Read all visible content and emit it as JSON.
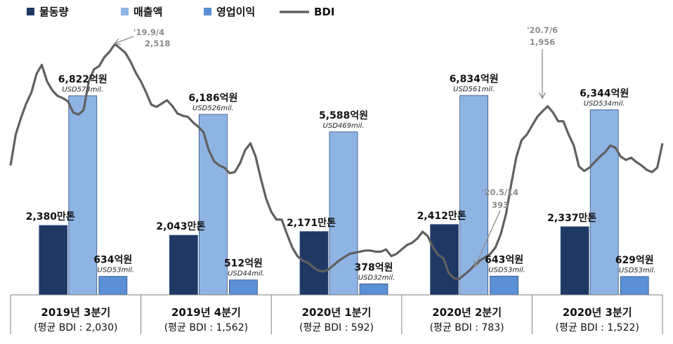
{
  "chart_data": {
    "type": "bar",
    "categories": [
      {
        "label": "2019년  3분기",
        "sublabel": "(평균 BDI : 2,030)"
      },
      {
        "label": "2019년  4분기",
        "sublabel": "(평균 BDI : 1,562)"
      },
      {
        "label": "2020년  1분기",
        "sublabel": "(평균 BDI : 592)"
      },
      {
        "label": "2020년  2분기",
        "sublabel": "(평균 BDI : 783)"
      },
      {
        "label": "2020년  3분기",
        "sublabel": "(평균 BDI : 1,522)"
      }
    ],
    "series": [
      {
        "name": "물동량",
        "unit": "만톤",
        "color": "#1f3864",
        "values": [
          2380,
          2043,
          2171,
          2412,
          2337
        ],
        "labels": [
          "2,380만톤",
          "2,043만톤",
          "2,171만톤",
          "2,412만톤",
          "2,337만톤"
        ],
        "sublabels": [
          "",
          "",
          "",
          "",
          ""
        ]
      },
      {
        "name": "매출액",
        "unit": "억원",
        "color": "#8eb4e3",
        "values": [
          6822,
          6186,
          5588,
          6834,
          6344
        ],
        "labels": [
          "6,822억원",
          "6,186억원",
          "5,588억원",
          "6,834억원",
          "6,344억원"
        ],
        "sublabels": [
          "USD573mil.",
          "USD526mil.",
          "USD469mil.",
          "USD561mil.",
          "USD534mil."
        ]
      },
      {
        "name": "영업이익",
        "unit": "억원",
        "color": "#5b8fd6",
        "values": [
          634,
          512,
          378,
          643,
          629
        ],
        "labels": [
          "634억원",
          "512억원",
          "378억원",
          "643억원",
          "629억원"
        ],
        "sublabels": [
          "USD53mil.",
          "USD44mil.",
          "USD32mil.",
          "USD53mil.",
          "USD53mil."
        ]
      }
    ],
    "line": {
      "name": "BDI",
      "color": "#606060",
      "ylim": [
        300,
        2650
      ],
      "x_range": [
        0,
        5
      ],
      "points": [
        [
          0.0,
          1420
        ],
        [
          0.04,
          1700
        ],
        [
          0.08,
          1850
        ],
        [
          0.12,
          1980
        ],
        [
          0.16,
          2080
        ],
        [
          0.2,
          2250
        ],
        [
          0.24,
          2330
        ],
        [
          0.28,
          2180
        ],
        [
          0.32,
          2100
        ],
        [
          0.36,
          2050
        ],
        [
          0.4,
          2030
        ],
        [
          0.44,
          2000
        ],
        [
          0.48,
          1900
        ],
        [
          0.52,
          1880
        ],
        [
          0.56,
          1920
        ],
        [
          0.6,
          2180
        ],
        [
          0.64,
          2290
        ],
        [
          0.68,
          2320
        ],
        [
          0.72,
          2400
        ],
        [
          0.76,
          2450
        ],
        [
          0.8,
          2518
        ],
        [
          0.84,
          2480
        ],
        [
          0.88,
          2440
        ],
        [
          0.92,
          2360
        ],
        [
          0.96,
          2260
        ],
        [
          1.0,
          2180
        ],
        [
          1.04,
          2080
        ],
        [
          1.08,
          1970
        ],
        [
          1.12,
          1950
        ],
        [
          1.16,
          1980
        ],
        [
          1.2,
          2010
        ],
        [
          1.24,
          1960
        ],
        [
          1.28,
          1890
        ],
        [
          1.32,
          1870
        ],
        [
          1.36,
          1860
        ],
        [
          1.4,
          1810
        ],
        [
          1.44,
          1770
        ],
        [
          1.48,
          1720
        ],
        [
          1.52,
          1560
        ],
        [
          1.56,
          1460
        ],
        [
          1.6,
          1420
        ],
        [
          1.64,
          1400
        ],
        [
          1.68,
          1350
        ],
        [
          1.72,
          1360
        ],
        [
          1.76,
          1440
        ],
        [
          1.8,
          1560
        ],
        [
          1.84,
          1620
        ],
        [
          1.88,
          1500
        ],
        [
          1.92,
          1300
        ],
        [
          1.96,
          1120
        ],
        [
          2.0,
          1000
        ],
        [
          2.04,
          930
        ],
        [
          2.08,
          930
        ],
        [
          2.12,
          800
        ],
        [
          2.16,
          680
        ],
        [
          2.2,
          600
        ],
        [
          2.24,
          560
        ],
        [
          2.28,
          540
        ],
        [
          2.32,
          500
        ],
        [
          2.36,
          470
        ],
        [
          2.4,
          460
        ],
        [
          2.44,
          480
        ],
        [
          2.48,
          520
        ],
        [
          2.52,
          560
        ],
        [
          2.56,
          590
        ],
        [
          2.6,
          620
        ],
        [
          2.64,
          630
        ],
        [
          2.68,
          640
        ],
        [
          2.72,
          650
        ],
        [
          2.76,
          650
        ],
        [
          2.8,
          640
        ],
        [
          2.84,
          640
        ],
        [
          2.88,
          660
        ],
        [
          2.92,
          600
        ],
        [
          2.96,
          620
        ],
        [
          3.0,
          660
        ],
        [
          3.04,
          700
        ],
        [
          3.08,
          720
        ],
        [
          3.12,
          760
        ],
        [
          3.16,
          820
        ],
        [
          3.2,
          780
        ],
        [
          3.24,
          680
        ],
        [
          3.28,
          610
        ],
        [
          3.32,
          580
        ],
        [
          3.36,
          450
        ],
        [
          3.4,
          400
        ],
        [
          3.44,
          393
        ],
        [
          3.48,
          430
        ],
        [
          3.52,
          470
        ],
        [
          3.56,
          520
        ],
        [
          3.6,
          560
        ],
        [
          3.64,
          590
        ],
        [
          3.68,
          620
        ],
        [
          3.72,
          680
        ],
        [
          3.76,
          800
        ],
        [
          3.8,
          980
        ],
        [
          3.84,
          1250
        ],
        [
          3.88,
          1500
        ],
        [
          3.92,
          1650
        ],
        [
          3.96,
          1700
        ],
        [
          4.0,
          1780
        ],
        [
          4.04,
          1860
        ],
        [
          4.08,
          1910
        ],
        [
          4.12,
          1956
        ],
        [
          4.16,
          1900
        ],
        [
          4.2,
          1820
        ],
        [
          4.24,
          1820
        ],
        [
          4.28,
          1700
        ],
        [
          4.32,
          1600
        ],
        [
          4.36,
          1410
        ],
        [
          4.4,
          1370
        ],
        [
          4.44,
          1400
        ],
        [
          4.48,
          1450
        ],
        [
          4.52,
          1500
        ],
        [
          4.56,
          1540
        ],
        [
          4.6,
          1600
        ],
        [
          4.64,
          1580
        ],
        [
          4.68,
          1500
        ],
        [
          4.72,
          1470
        ],
        [
          4.76,
          1490
        ],
        [
          4.8,
          1450
        ],
        [
          4.84,
          1420
        ],
        [
          4.88,
          1380
        ],
        [
          4.92,
          1360
        ],
        [
          4.96,
          1400
        ],
        [
          5.0,
          1620
        ]
      ]
    },
    "annotations": [
      {
        "text": "'19.9/4",
        "value": "2,518",
        "x": 0.8,
        "y": 2518
      },
      {
        "text": "'20.5/14",
        "value": "393",
        "x": 3.44,
        "y": 393
      },
      {
        "text": "'20.7/6",
        "value": "1,956",
        "x": 4.12,
        "y": 1956
      }
    ],
    "ylim": [
      0,
      7700
    ],
    "legend": "top-left",
    "grid": false
  }
}
